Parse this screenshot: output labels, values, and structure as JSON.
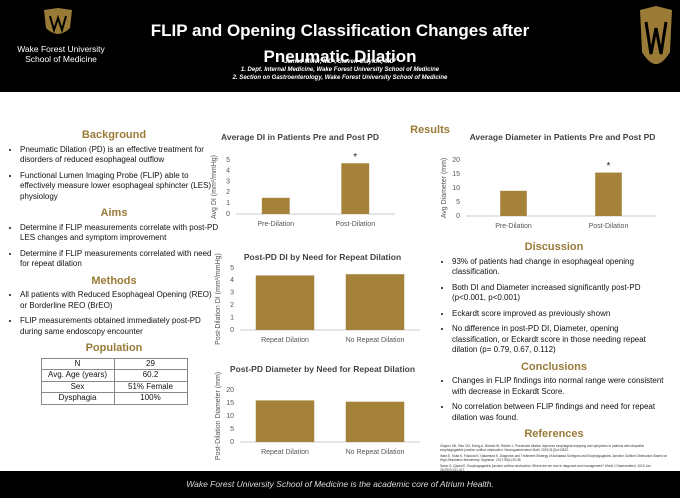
{
  "header": {
    "logo_line1": "Wake Forest University",
    "logo_line2": "School of Medicine",
    "title": "FLIP and Opening Classification Changes after Pneumatic Dilation",
    "authors": "James Miller, MD¹, Steven Clayton, MD²",
    "affiliations": [
      "1. Dept. Internal Medicine, Wake Forest University School of Medicine",
      "2. Section on Gastroenterology, Wake Forest University School of Medicine"
    ]
  },
  "left_sections": [
    {
      "heading": "Background",
      "bullets": [
        "Pneumatic Dilation (PD) is an effective treatment for disorders of reduced esophageal outflow",
        "Functional Lumen Imaging Probe (FLIP) able to effectively measure lower esophageal sphincter (LES) physiology"
      ]
    },
    {
      "heading": "Aims",
      "bullets": [
        "Determine if FLIP measurements correlate with post-PD LES changes and symptom improvement",
        "Determine if FLIP measurements correlated with need for repeat dilation"
      ]
    },
    {
      "heading": "Methods",
      "bullets": [
        "All patients with Reduced Esophageal Opening (REO) or Borderline REO (BrEO)",
        "FLIP measurements obtained immediately post-PD during same endoscopy encounter"
      ]
    }
  ],
  "population": {
    "heading": "Population",
    "rows": [
      [
        "N",
        "29"
      ],
      [
        "Avg. Age (years)",
        "60.2"
      ],
      [
        "Sex",
        "51% Female"
      ],
      [
        "Dysphagia",
        "100%"
      ]
    ]
  },
  "results_heading": "Results",
  "right_sections": [
    {
      "heading": "Discussion",
      "bullets": [
        "93% of patients had change in esophageal opening classification.",
        "Both DI and Diameter increased significantly post-PD (p<0.001, p<0.001)",
        "Eckardt score improved as previously shown",
        "No difference in post-PD DI, Diameter, opening classification, or Eckardt score in those needing repeat dilation (p= 0.79, 0.67, 0.112)"
      ]
    },
    {
      "heading": "Conclusions",
      "bullets": [
        "Changes in FLIP findings into normal range were consistent with decrease in Eckardt Score.",
        "No correlation between FLIP findings and need for repeat dilation was found."
      ]
    }
  ],
  "references": {
    "heading": "References",
    "items": [
      "Clayton SB, Shin CM, Ewing A, Blonski W, Richter J. Pneumatic dilation improves esophageal emptying and symptoms in patients with idiopathic esophagogastric junction outflow obstruction. Neurogastroenterol Motil. 2019;31(3):e13522.",
      "Ihara E, Muta K, Fukaura K, Nakamura K. Diagnosis and Treatment Strategy of Achalasia Subtypes and Esophagogastric Junction Outflow Obstruction Based on High-Resolution Manometry. Digestion. 2017;95(1):29-35.",
      "Samo S, Qayed E. Esophagogastric junction outflow obstruction: Where are we now in diagnosis and management? World J Gastroenterol. 2019 Jan 28;25(4):411-417."
    ]
  },
  "chart_data": [
    {
      "type": "bar",
      "title": "Average DI in Patients Pre and Post PD",
      "y_label": "Avg DI (mm²/mmHg)",
      "categories": [
        "Pre-Dilation",
        "Post-Dilation"
      ],
      "values": [
        1.5,
        4.7
      ],
      "color": "#a4823a",
      "ylim": [
        0,
        5
      ],
      "yticks": [
        0,
        1,
        2,
        3,
        4,
        5
      ],
      "annotation": "*"
    },
    {
      "type": "bar",
      "title": "Average Diameter in Patients Pre and Post PD",
      "y_label": "Avg Diameter (mm)",
      "categories": [
        "Pre-Dilation",
        "Post-Dilation"
      ],
      "values": [
        9,
        15.5
      ],
      "color": "#a4823a",
      "ylim": [
        0,
        20
      ],
      "yticks": [
        0,
        5,
        10,
        15,
        20
      ],
      "annotation": "*"
    },
    {
      "type": "bar",
      "title": "Post-PD DI by Need for Repeat Dilation",
      "y_label": "Post-Dilation DI (mm²/mmHg)",
      "categories": [
        "Repeat Dilation",
        "No Repeat Dilation"
      ],
      "values": [
        4.4,
        4.5
      ],
      "color": "#a4823a",
      "ylim": [
        0,
        5
      ],
      "yticks": [
        0,
        1,
        2,
        3,
        4,
        5
      ]
    },
    {
      "type": "bar",
      "title": "Post-PD Diameter by Need for Repeat Dilation",
      "y_label": "Post-Dilation Diameter (mm)",
      "categories": [
        "Repeat Dilation",
        "No Repeat Dilation"
      ],
      "values": [
        16,
        15.5
      ],
      "color": "#a4823a",
      "ylim": [
        0,
        20
      ],
      "yticks": [
        0,
        5,
        10,
        15,
        20
      ]
    }
  ],
  "footer": "Wake Forest University School of Medicine is the academic core of Atrium Health."
}
